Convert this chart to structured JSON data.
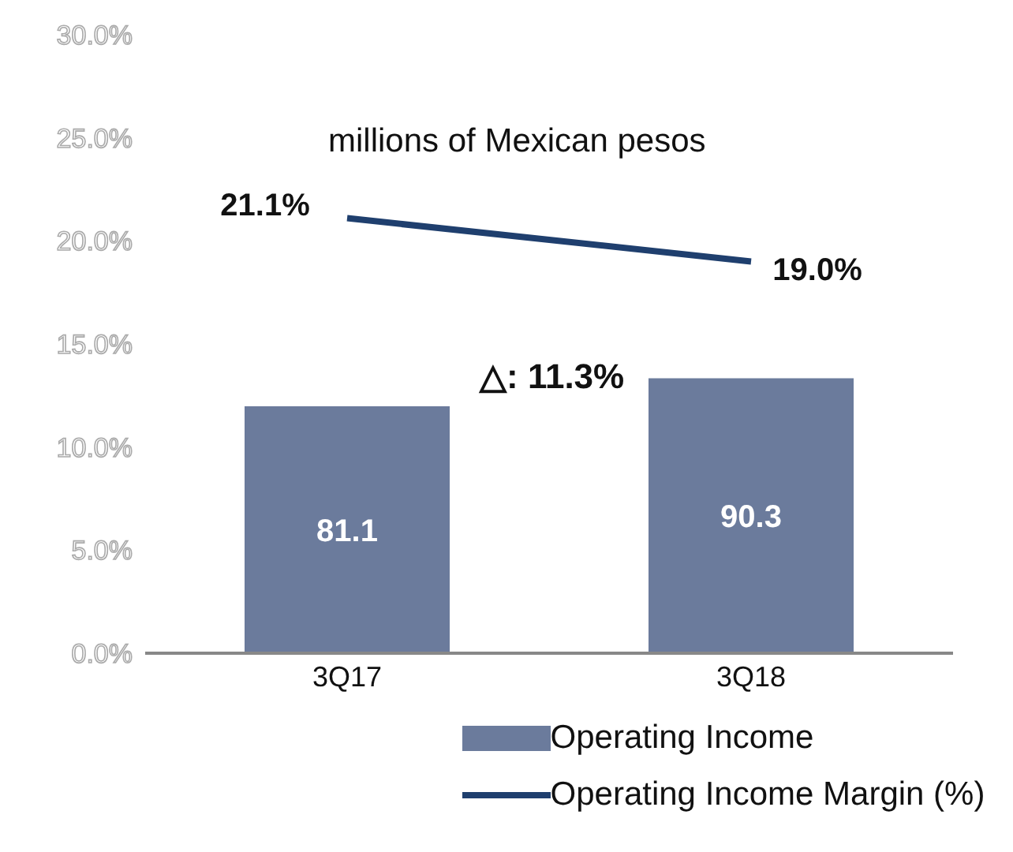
{
  "chart_data": {
    "type": "bar",
    "annotations": [
      "millions of Mexican pesos",
      "△: 11.3%"
    ],
    "categories": [
      "3Q17",
      "3Q18"
    ],
    "series": [
      {
        "name": "Operating Income",
        "axis": "y2",
        "color": "#6b7b9c",
        "values": [
          81.1,
          90.3
        ],
        "value_labels": [
          "81.1",
          "90.3"
        ]
      },
      {
        "name": "Operating Income Margin (%)",
        "type": "line",
        "axis": "y",
        "color": "#1f3f6e",
        "values": [
          21.1,
          19.0
        ],
        "value_labels": [
          "21.1%",
          "19.0%"
        ]
      }
    ],
    "ylim": [
      0,
      30
    ],
    "yticks": [
      {
        "value": 0,
        "label": "0.0%"
      },
      {
        "value": 5,
        "label": "5.0%"
      },
      {
        "value": 10,
        "label": "10.0%"
      },
      {
        "value": 15,
        "label": "15.0%"
      },
      {
        "value": 20,
        "label": "20.0%"
      },
      {
        "value": 25,
        "label": "25.0%"
      },
      {
        "value": 30,
        "label": "30.0%"
      }
    ],
    "marker": "none",
    "grid": false,
    "legend": "bottom"
  }
}
